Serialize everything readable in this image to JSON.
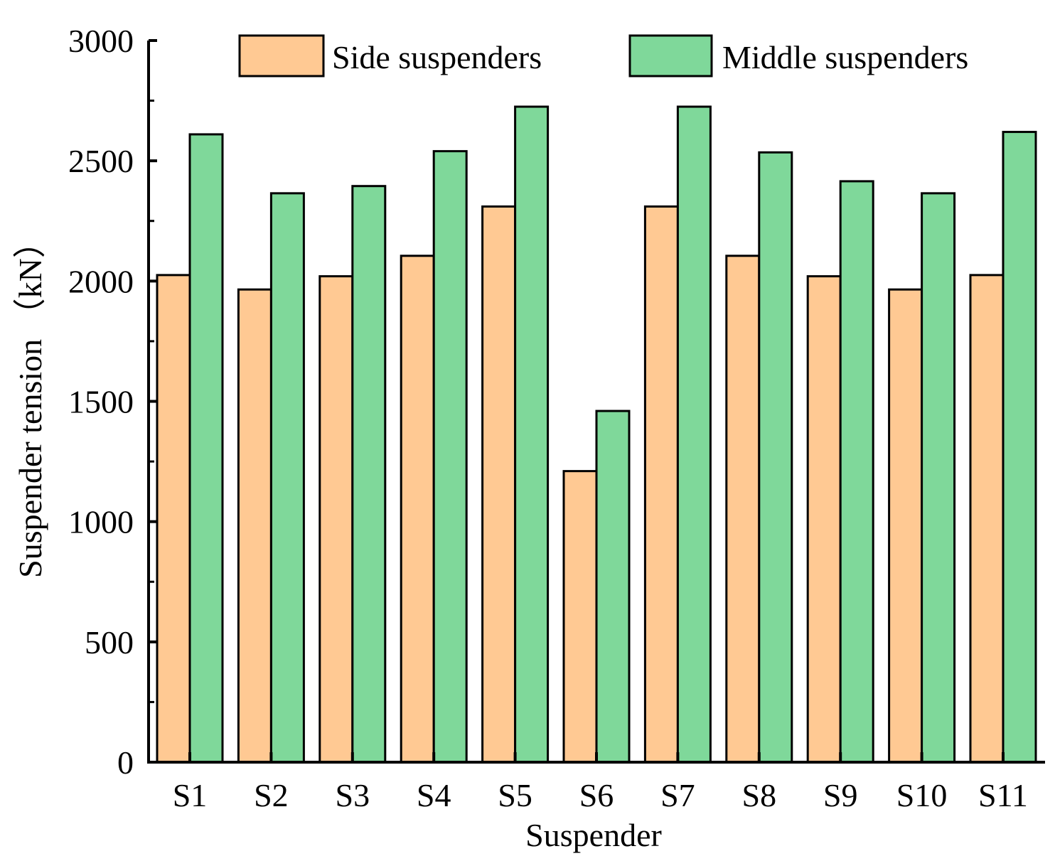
{
  "chart_data": {
    "type": "bar",
    "title": "",
    "xlabel": "Suspender",
    "ylabel": "Suspender tension （kN）",
    "categories": [
      "S1",
      "S2",
      "S3",
      "S4",
      "S5",
      "S6",
      "S7",
      "S8",
      "S9",
      "S10",
      "S11"
    ],
    "series": [
      {
        "name": "Side suspenders",
        "color": "#FFC993",
        "values": [
          2025,
          1965,
          2020,
          2105,
          2310,
          1210,
          2310,
          2105,
          2020,
          1965,
          2025
        ]
      },
      {
        "name": "Middle suspenders",
        "color": "#7FD89A",
        "values": [
          2610,
          2365,
          2395,
          2540,
          2725,
          1460,
          2725,
          2535,
          2415,
          2365,
          2620
        ]
      }
    ],
    "ylim": [
      0,
      3000
    ],
    "yticks": [
      "0",
      "500",
      "1000",
      "1500",
      "2000",
      "2500",
      "3000"
    ],
    "ytick_values": [
      0,
      500,
      1000,
      1500,
      2000,
      2500,
      3000
    ],
    "grid": false,
    "legend_position": "top"
  }
}
